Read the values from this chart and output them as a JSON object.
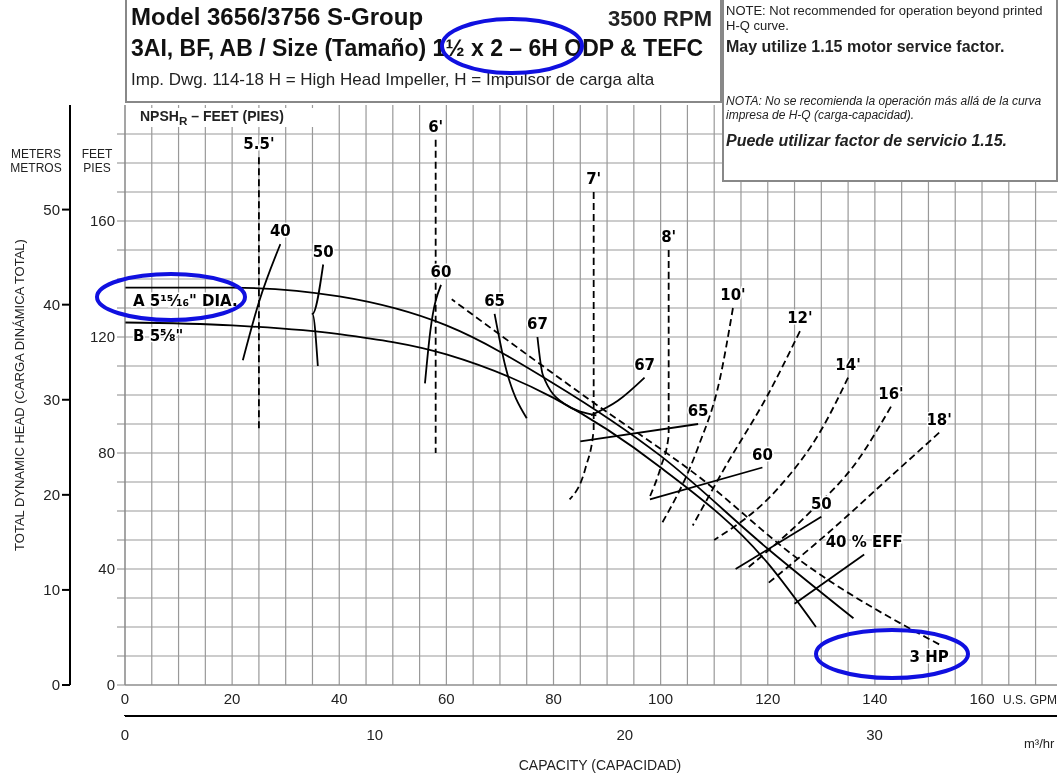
{
  "chart_data": {
    "type": "line",
    "title": "Model 3656/3756 S-Group",
    "subtitle": "3AI, BF, AB / Size (Tamaño) 1½ x 2 – 6H ODP & TEFC",
    "annotations": [
      "3500 RPM",
      "Imp. Dwg. 114-18  H = High Head Impeller, H = Impulsor de carga alta",
      "NOTE: Not recommended for operation beyond printed H-Q curve.",
      "May utilize 1.15 motor service factor.",
      "NOTA: No se recomienda la operación más allá de la curva impresa de H-Q (carga-capacidad).",
      "Puede utilizar factor de servicio 1.15.",
      "NPSH$_{R}$ – FEET (PIES)",
      "METERS METROS",
      "FEET PIES",
      "U.S. GPM",
      "m³/hr"
    ],
    "xlabel": "CAPACITY (CAPACIDAD)",
    "y2label": "TOTAL DYNAMIC HEAD (CARGA DINÁMICA TOTAL)",
    "xlim": [
      0,
      174
    ],
    "xticks": [
      0,
      {
        "value": 5,
        "label": null
      },
      {
        "value": 10,
        "label": null
      },
      {
        "value": 15,
        "label": null
      },
      20,
      {
        "value": 25,
        "label": null
      },
      {
        "value": 30,
        "label": null
      },
      {
        "value": 35,
        "label": null
      },
      40,
      {
        "value": 45,
        "label": null
      },
      {
        "value": 50,
        "label": null
      },
      {
        "value": 55,
        "label": null
      },
      60,
      {
        "value": 65,
        "label": null
      },
      {
        "value": 70,
        "label": null
      },
      {
        "value": 75,
        "label": null
      },
      80,
      {
        "value": 85,
        "label": null
      },
      {
        "value": 90,
        "label": null
      },
      {
        "value": 95,
        "label": null
      },
      100,
      {
        "value": 105,
        "label": null
      },
      {
        "value": 110,
        "label": null
      },
      {
        "value": 115,
        "label": null
      },
      120,
      {
        "value": 125,
        "label": null
      },
      {
        "value": 130,
        "label": null
      },
      {
        "value": 135,
        "label": null
      },
      140,
      {
        "value": 145,
        "label": null
      },
      {
        "value": 150,
        "label": null
      },
      {
        "value": 155,
        "label": null
      },
      160,
      {
        "value": 165,
        "label": null
      },
      {
        "value": 170,
        "label": null
      }
    ],
    "ylim": [
      0,
      200
    ],
    "yticks": [
      0,
      {
        "value": 10,
        "label": null
      },
      {
        "value": 20,
        "label": null
      },
      {
        "value": 30,
        "label": null
      },
      40,
      {
        "value": 50,
        "label": null
      },
      {
        "value": 60,
        "label": null
      },
      {
        "value": 70,
        "label": null
      },
      80,
      {
        "value": 90,
        "label": null
      },
      {
        "value": 100,
        "label": null
      },
      {
        "value": 110,
        "label": null
      },
      120,
      {
        "value": 130,
        "label": null
      },
      {
        "value": 140,
        "label": null
      },
      {
        "value": 150,
        "label": null
      },
      160,
      {
        "value": 170,
        "label": null
      },
      {
        "value": 180,
        "label": null
      },
      {
        "value": 190,
        "label": null
      }
    ],
    "x2lim": [
      0,
      37.3
    ],
    "x2ticks": [
      0,
      10,
      20,
      30
    ],
    "y2lim": [
      0,
      61
    ],
    "y2ticks": [
      0,
      10,
      20,
      30,
      40,
      50
    ],
    "grid": true,
    "legend": false,
    "marker": "none",
    "series": [
      {
        "name": "A 5¹⁵⁄₁₆\" DIA.",
        "color": "#000000",
        "line_style": "solid",
        "x": [
          0,
          20,
          40,
          60,
          80,
          100,
          120,
          136
        ],
        "values": [
          137,
          137,
          134,
          124,
          104,
          79,
          47,
          23
        ]
      },
      {
        "name": "B 5⅝\"",
        "color": "#000000",
        "line_style": "solid",
        "x": [
          0,
          20,
          40,
          60,
          80,
          100,
          120,
          129
        ],
        "values": [
          125,
          124,
          121,
          114,
          99,
          75,
          42,
          20
        ]
      },
      {
        "name": "3 HP",
        "color": "#000000",
        "line_style": "dashed",
        "x": [
          152,
          126,
          107,
          87,
          61
        ],
        "values": [
          14,
          43,
          72,
          98,
          133
        ]
      },
      {
        "name": "5.5'",
        "color": "#000000",
        "line_style": "dashed",
        "x": [
          25,
          25
        ],
        "values": [
          182,
          88
        ]
      },
      {
        "name": "6'",
        "color": "#000000",
        "line_style": "dashed",
        "x": [
          58,
          58
        ],
        "values": [
          188,
          80
        ]
      },
      {
        "name": "7'",
        "color": "#000000",
        "line_style": "dashed",
        "x": [
          87.5,
          87.5,
          86,
          83
        ],
        "values": [
          170,
          88,
          75,
          64
        ]
      },
      {
        "name": "8'",
        "color": "#000000",
        "line_style": "dashed",
        "x": [
          101.5,
          101.5,
          100,
          98
        ],
        "values": [
          150,
          86,
          75,
          65
        ]
      },
      {
        "name": "10'",
        "color": "#000000",
        "line_style": "dashed",
        "x": [
          113.5,
          111,
          107,
          100
        ],
        "values": [
          130,
          105,
          82,
          55
        ]
      },
      {
        "name": "12'",
        "color": "#000000",
        "line_style": "dashed",
        "x": [
          126,
          120,
          112,
          106
        ],
        "values": [
          122,
          100,
          75,
          55
        ]
      },
      {
        "name": "14'",
        "color": "#000000",
        "line_style": "dashed",
        "x": [
          135,
          130,
          122,
          110
        ],
        "values": [
          106,
          88,
          68,
          50
        ]
      },
      {
        "name": "16'",
        "color": "#000000",
        "line_style": "dashed",
        "x": [
          143,
          137,
          127,
          116
        ],
        "values": [
          96,
          78,
          58,
          40
        ]
      },
      {
        "name": "18'",
        "color": "#000000",
        "line_style": "dashed",
        "x": [
          152,
          143,
          131,
          120
        ],
        "values": [
          87,
          72,
          52,
          35
        ]
      },
      {
        "name": "40",
        "color": "#000000",
        "line_style": "solid",
        "x": [
          29,
          25,
          22
        ],
        "values": [
          152,
          132,
          112
        ]
      },
      {
        "name": "50",
        "color": "#000000",
        "line_style": "solid",
        "x": [
          37,
          35,
          36
        ],
        "values": [
          145,
          128,
          110
        ]
      },
      {
        "name": "60",
        "color": "#000000",
        "line_style": "solid",
        "x": [
          59,
          57,
          56
        ],
        "values": [
          138,
          122,
          104
        ]
      },
      {
        "name": "65",
        "color": "#000000",
        "line_style": "solid",
        "x": [
          69,
          71,
          75
        ],
        "values": [
          128,
          110,
          92
        ]
      },
      {
        "name": "67",
        "color": "#000000",
        "line_style": "solid",
        "x": [
          77,
          78,
          82,
          88
        ],
        "values": [
          120,
          107,
          97,
          93
        ]
      },
      {
        "name": "67",
        "color": "#000000",
        "line_style": "solid",
        "x": [
          97,
          92,
          87
        ],
        "values": [
          106,
          98,
          93
        ]
      },
      {
        "name": "65",
        "color": "#000000",
        "line_style": "solid",
        "x": [
          107,
          85
        ],
        "values": [
          90,
          84
        ]
      },
      {
        "name": "60",
        "color": "#000000",
        "line_style": "solid",
        "x": [
          119,
          98
        ],
        "values": [
          75,
          64
        ]
      },
      {
        "name": "50",
        "color": "#000000",
        "line_style": "solid",
        "x": [
          130,
          114
        ],
        "values": [
          58,
          40
        ]
      },
      {
        "name": "40 % EFF",
        "color": "#000000",
        "line_style": "solid",
        "x": [
          138,
          125
        ],
        "values": [
          45,
          28
        ]
      }
    ]
  }
}
